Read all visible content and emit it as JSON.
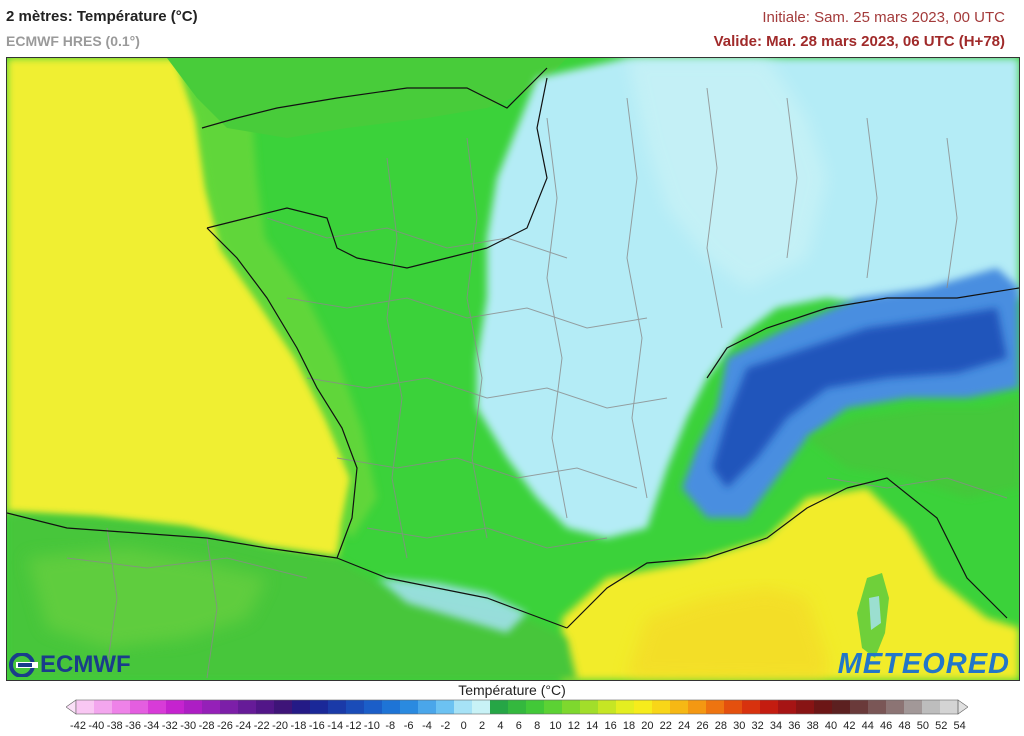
{
  "header": {
    "title": "2 mètres: Température (°C)",
    "model": "ECMWF HRES (0.1°)",
    "initial": "Initiale: Sam. 25 mars 2023, 00 UTC",
    "valid": "Valide: Mar. 28 mars 2023, 06 UTC (H+78)"
  },
  "logos": {
    "left": "ECMWF",
    "right": "METEORED"
  },
  "legend": {
    "title": "Température (°C)",
    "ticks": [
      "-42",
      "-40",
      "-38",
      "-36",
      "-34",
      "-32",
      "-30",
      "-28",
      "-26",
      "-24",
      "-22",
      "-20",
      "-18",
      "-16",
      "-14",
      "-12",
      "-10",
      "-8",
      "-6",
      "-4",
      "-2",
      "0",
      "2",
      "4",
      "6",
      "8",
      "10",
      "12",
      "14",
      "16",
      "18",
      "20",
      "22",
      "24",
      "26",
      "28",
      "30",
      "32",
      "34",
      "36",
      "38",
      "40",
      "42",
      "44",
      "46",
      "48",
      "50",
      "52",
      "54"
    ],
    "colors": [
      "#f9c7f3",
      "#f3a6ee",
      "#ee82e8",
      "#e45ee0",
      "#d83bd8",
      "#c523cf",
      "#ad1ec4",
      "#9520b8",
      "#7c1fa8",
      "#661b98",
      "#521688",
      "#3e1478",
      "#241a86",
      "#1a2898",
      "#1a3aa8",
      "#1a4cb8",
      "#1b5ec8",
      "#1e74d6",
      "#2a8ae0",
      "#4aa6ea",
      "#6cc2f2",
      "#a6e2f6",
      "#c8f2f6",
      "#26a646",
      "#34b83e",
      "#42c838",
      "#5cd234",
      "#7ed82e",
      "#a2de2a",
      "#c6e624",
      "#e4ee20",
      "#f6ec1c",
      "#f8d618",
      "#f6b814",
      "#f49812",
      "#ee7410",
      "#e4500e",
      "#d8320e",
      "#c41c10",
      "#a61414",
      "#881414",
      "#6c1616",
      "#5c2020",
      "#6a3a3a",
      "#7a5656",
      "#8c7474",
      "#a29898",
      "#bdbdbd",
      "#d4d4d4"
    ]
  },
  "map_legend_colors": {
    "sea_warm": "#f2ee2e",
    "land_mild": "#22c23a",
    "land_cool": "#3ad43a",
    "near_zero": "#c8f2f6",
    "alps_cold": "#1e5ec8",
    "border": "#8a8a8a"
  }
}
